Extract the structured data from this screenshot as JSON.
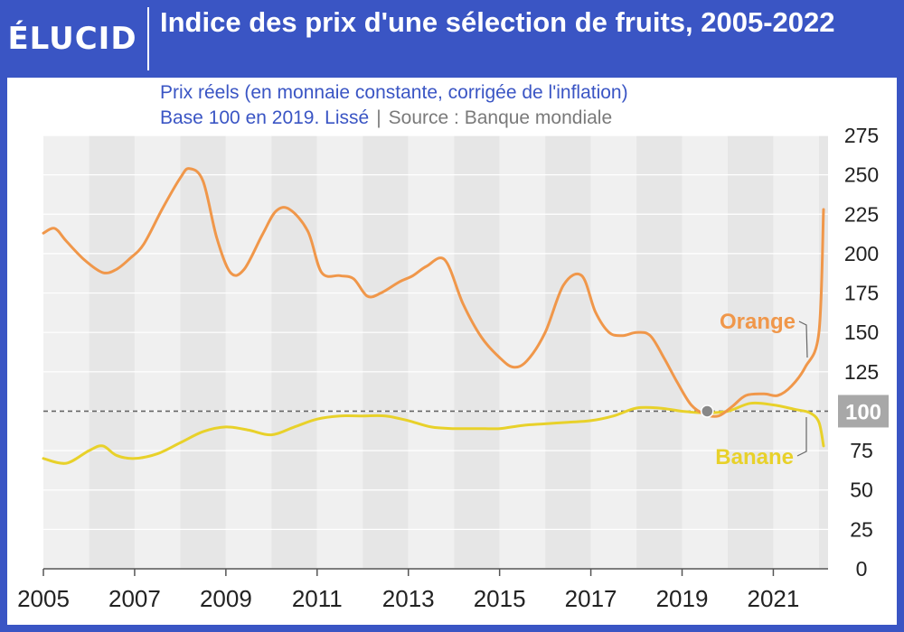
{
  "brand": {
    "logo_text": "ÉLUCID",
    "url": "www.elucid.media"
  },
  "header": {
    "title": "Indice des prix d'une sélection de fruits, 2005-2022",
    "subtitle_line1": "Prix réels (en monnaie constante, corrigée de l'inflation)",
    "subtitle_line2": "Base 100 en 2019. Lissé",
    "source": "Source : Banque mondiale"
  },
  "colors": {
    "brand": "#3a55c4",
    "orange": "#f0974a",
    "banane": "#e8d12a",
    "reference": "#666666"
  },
  "chart_data": {
    "type": "line",
    "title": "Indice des prix d'une sélection de fruits, 2005-2022",
    "xlabel": "",
    "ylabel": "",
    "xlim": [
      2005,
      2022.2
    ],
    "ylim": [
      0,
      275
    ],
    "x_ticks": [
      "2005",
      "2007",
      "2009",
      "2011",
      "2013",
      "2015",
      "2017",
      "2019",
      "2021"
    ],
    "y_ticks": [
      0,
      25,
      50,
      75,
      100,
      125,
      150,
      175,
      200,
      225,
      250,
      275
    ],
    "reference_line": {
      "value": 100,
      "label": "100"
    },
    "grid": true,
    "series": [
      {
        "name": "Orange",
        "color": "#f0974a",
        "x": [
          2005.0,
          2005.25,
          2005.5,
          2005.9,
          2006.3,
          2006.6,
          2006.9,
          2007.2,
          2007.6,
          2008.0,
          2008.2,
          2008.5,
          2008.8,
          2009.1,
          2009.4,
          2009.8,
          2010.1,
          2010.4,
          2010.8,
          2011.1,
          2011.5,
          2011.8,
          2012.1,
          2012.4,
          2012.8,
          2013.1,
          2013.4,
          2013.8,
          2014.2,
          2014.6,
          2015.0,
          2015.3,
          2015.6,
          2016.0,
          2016.4,
          2016.8,
          2017.1,
          2017.4,
          2017.7,
          2018.0,
          2018.3,
          2018.6,
          2018.9,
          2019.2,
          2019.5,
          2019.8,
          2020.1,
          2020.4,
          2020.8,
          2021.1,
          2021.4,
          2021.7,
          2022.0,
          2022.1
        ],
        "y": [
          213,
          216,
          208,
          196,
          188,
          190,
          197,
          206,
          228,
          248,
          254,
          246,
          210,
          188,
          190,
          212,
          227,
          228,
          214,
          188,
          186,
          184,
          173,
          175,
          182,
          186,
          192,
          196,
          168,
          147,
          134,
          128,
          132,
          150,
          180,
          186,
          163,
          150,
          148,
          150,
          148,
          134,
          118,
          104,
          98,
          97,
          103,
          110,
          111,
          110,
          116,
          128,
          150,
          228
        ]
      },
      {
        "name": "Banane",
        "color": "#e8d12a",
        "x": [
          2005.0,
          2005.5,
          2006.0,
          2006.3,
          2006.6,
          2007.0,
          2007.5,
          2008.0,
          2008.5,
          2009.0,
          2009.5,
          2010.0,
          2010.5,
          2011.0,
          2011.5,
          2012.0,
          2012.5,
          2013.0,
          2013.5,
          2014.0,
          2014.5,
          2015.0,
          2015.5,
          2016.0,
          2016.5,
          2017.0,
          2017.5,
          2018.0,
          2018.5,
          2019.0,
          2019.5,
          2020.0,
          2020.5,
          2021.0,
          2021.5,
          2021.8,
          2022.0,
          2022.1
        ],
        "y": [
          70,
          67,
          75,
          78,
          72,
          70,
          73,
          80,
          87,
          90,
          88,
          85,
          90,
          95,
          97,
          97,
          97,
          94,
          90,
          89,
          89,
          89,
          91,
          92,
          93,
          94,
          97,
          102,
          102,
          100,
          99,
          100,
          105,
          104,
          101,
          99,
          93,
          78
        ]
      }
    ]
  }
}
